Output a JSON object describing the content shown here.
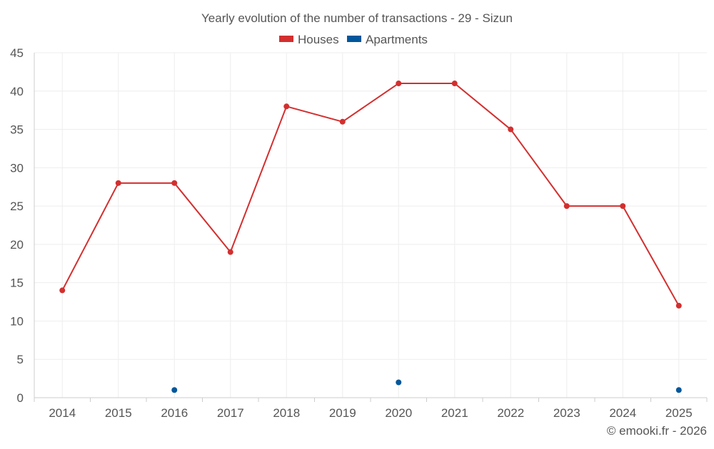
{
  "chart_data": {
    "type": "line",
    "title": "Yearly evolution of the number of transactions - 29 - Sizun",
    "categories": [
      "2014",
      "2015",
      "2016",
      "2017",
      "2018",
      "2019",
      "2020",
      "2021",
      "2022",
      "2023",
      "2024",
      "2025"
    ],
    "series": [
      {
        "name": "Houses",
        "color": "#d32f2f",
        "line": true,
        "values": [
          14,
          28,
          28,
          19,
          38,
          36,
          41,
          41,
          35,
          25,
          25,
          12
        ]
      },
      {
        "name": "Apartments",
        "color": "#01579b",
        "line": false,
        "values": [
          null,
          null,
          1,
          null,
          null,
          null,
          2,
          null,
          null,
          null,
          null,
          1
        ]
      }
    ],
    "ylim": [
      0,
      45
    ],
    "yticks": [
      0,
      5,
      10,
      15,
      20,
      25,
      30,
      35,
      40,
      45
    ],
    "grid": true,
    "legend": "top-center",
    "xlabel": "",
    "ylabel": ""
  },
  "footer": {
    "credit": "© emooki.fr - 2026"
  },
  "colors": {
    "grid": "#eeeeee",
    "axis": "#cccccc",
    "text": "#555555"
  }
}
